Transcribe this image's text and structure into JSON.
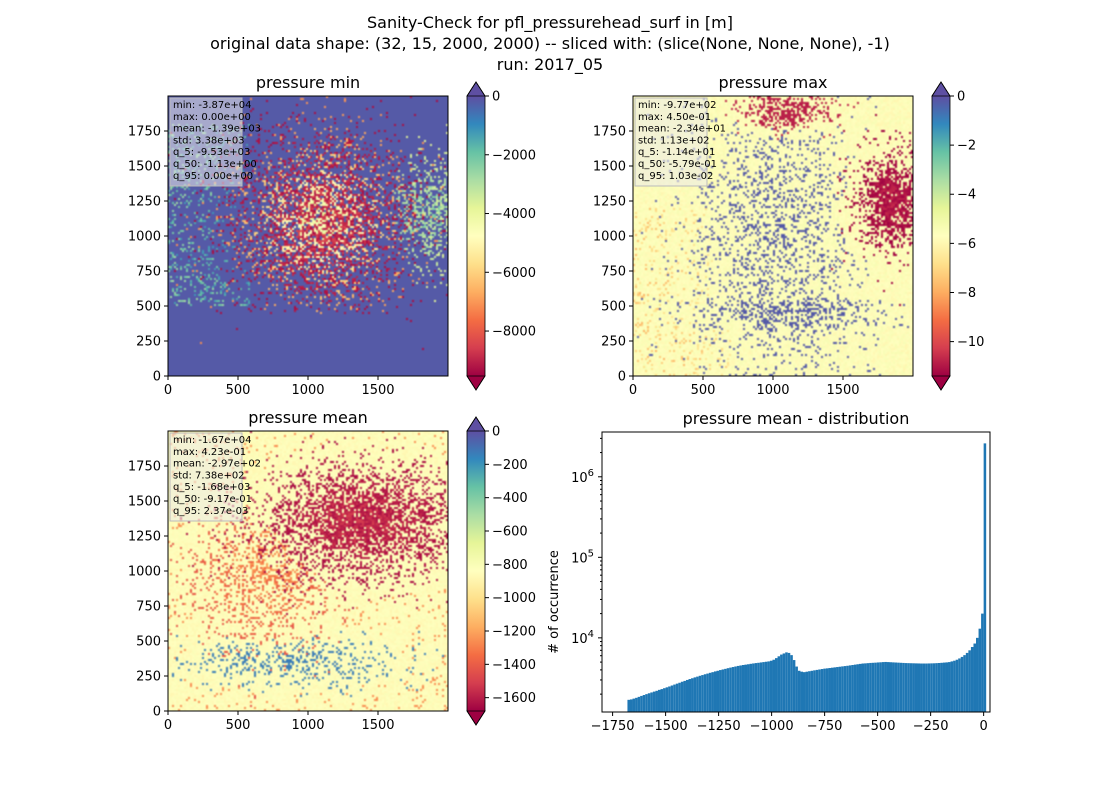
{
  "figure": {
    "title_lines": [
      "Sanity-Check for pfl_pressurehead_surf in [m]",
      "original data shape: (32, 15, 2000, 2000) -- sliced with: (slice(None, None, None), -1)",
      "run: 2017_05"
    ]
  },
  "chart_data": [
    {
      "type": "heatmap",
      "title": "pressure min",
      "xlim": [
        0,
        2000
      ],
      "ylim": [
        0,
        2000
      ],
      "x_ticks": [
        0,
        500,
        1000,
        1500
      ],
      "y_ticks": [
        0,
        250,
        500,
        750,
        1000,
        1250,
        1500,
        1750
      ],
      "colormap": "Spectral",
      "colorbar": {
        "range": [
          -9530,
          0
        ],
        "ticks": [
          "0",
          "−2000",
          "−4000",
          "−6000",
          "−8000"
        ],
        "tick_values": [
          0,
          -2000,
          -4000,
          -6000,
          -8000
        ],
        "extend": "both"
      },
      "stats": [
        "min: -3.87e+04",
        "max: 0.00e+00",
        "mean: -1.39e+03",
        "std: 3.38e+03",
        "q_5: -9.53e+03",
        "q_50: -1.13e+00",
        "q_95: 0.00e+00"
      ]
    },
    {
      "type": "heatmap",
      "title": "pressure max",
      "xlim": [
        0,
        2000
      ],
      "ylim": [
        0,
        2000
      ],
      "x_ticks": [
        0,
        500,
        1000,
        1500
      ],
      "y_ticks": [
        0,
        250,
        500,
        750,
        1000,
        1250,
        1500,
        1750
      ],
      "colormap": "Spectral",
      "colorbar": {
        "range": [
          -11.4,
          0
        ],
        "ticks": [
          "0",
          "−2",
          "−4",
          "−6",
          "−8",
          "−10"
        ],
        "tick_values": [
          0,
          -2,
          -4,
          -6,
          -8,
          -10
        ],
        "extend": "both"
      },
      "stats": [
        "min: -9.77e+02",
        "max: 4.50e-01",
        "mean: -2.34e+01",
        "std: 1.13e+02",
        "q_5: -1.14e+01",
        "q_50: -5.79e-01",
        "q_95: 1.03e-02"
      ]
    },
    {
      "type": "heatmap",
      "title": "pressure mean",
      "xlim": [
        0,
        2000
      ],
      "ylim": [
        0,
        2000
      ],
      "x_ticks": [
        0,
        500,
        1000,
        1500
      ],
      "y_ticks": [
        0,
        250,
        500,
        750,
        1000,
        1250,
        1500,
        1750
      ],
      "colormap": "Spectral",
      "colorbar": {
        "range": [
          -1680,
          0
        ],
        "ticks": [
          "0",
          "−200",
          "−400",
          "−600",
          "−800",
          "−1000",
          "−1200",
          "−1400",
          "−1600"
        ],
        "tick_values": [
          0,
          -200,
          -400,
          -600,
          -800,
          -1000,
          -1200,
          -1400,
          -1600
        ],
        "extend": "both"
      },
      "stats": [
        "min: -1.67e+04",
        "max: 4.23e-01",
        "mean: -2.97e+02",
        "std: 7.38e+02",
        "q_5: -1.68e+03",
        "q_50: -9.17e-01",
        "q_95: 2.37e-03"
      ]
    },
    {
      "type": "bar",
      "title": "pressure mean - distribution",
      "ylabel": "# of occurrence",
      "yscale": "log",
      "xlim": [
        -1800,
        30
      ],
      "ylim": [
        1200,
        3600000
      ],
      "x_ticks": [
        -1750,
        -1500,
        -1250,
        -1000,
        -750,
        -500,
        -250,
        0
      ],
      "x_tick_labels": [
        "−1750",
        "−1500",
        "−1250",
        "−1000",
        "−750",
        "−500",
        "−250",
        "0"
      ],
      "y_ticks": [
        10000,
        100000,
        1000000
      ],
      "y_tick_labels": [
        "10^4",
        "10^5",
        "10^6"
      ],
      "bar_color": "#1f77b4",
      "bins": {
        "start": -1680,
        "width": 12
      },
      "counts": [
        1700,
        1720,
        1760,
        1800,
        1850,
        1900,
        1950,
        2000,
        2050,
        2100,
        2150,
        2200,
        2260,
        2310,
        2370,
        2430,
        2490,
        2560,
        2630,
        2700,
        2770,
        2850,
        2920,
        3000,
        3080,
        3150,
        3230,
        3300,
        3380,
        3450,
        3530,
        3600,
        3680,
        3750,
        3830,
        3900,
        3980,
        4050,
        4120,
        4200,
        4270,
        4340,
        4410,
        4480,
        4540,
        4600,
        4650,
        4700,
        4760,
        4810,
        4860,
        4900,
        4950,
        5000,
        5050,
        5100,
        5200,
        5350,
        5600,
        5900,
        6200,
        6400,
        6600,
        6500,
        6100,
        5300,
        4400,
        3900,
        3800,
        3750,
        3800,
        3850,
        3900,
        3950,
        4000,
        4050,
        4100,
        4150,
        4180,
        4220,
        4260,
        4300,
        4340,
        4380,
        4420,
        4460,
        4500,
        4550,
        4600,
        4650,
        4700,
        4750,
        4800,
        4820,
        4850,
        4880,
        4900,
        4920,
        4950,
        4970,
        5000,
        5020,
        5000,
        4980,
        4960,
        4940,
        4920,
        4900,
        4880,
        4860,
        4850,
        4840,
        4830,
        4820,
        4810,
        4800,
        4800,
        4800,
        4810,
        4820,
        4830,
        4850,
        4870,
        4900,
        4930,
        4960,
        5000,
        5100,
        5200,
        5350,
        5550,
        5800,
        6100,
        6500,
        7000,
        7700,
        8500,
        10000,
        13000,
        20000,
        2600000
      ]
    }
  ]
}
